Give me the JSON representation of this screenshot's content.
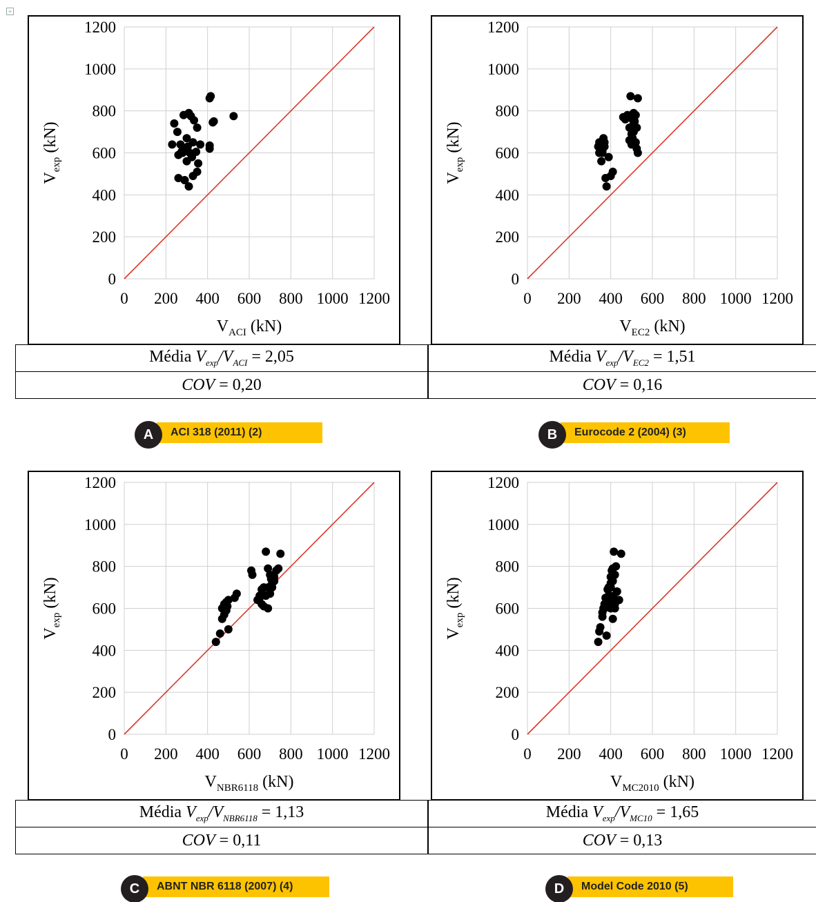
{
  "colors": {
    "reference_line": "#d9372a",
    "points": "#000000",
    "badge_circle": "#231f20",
    "badge_bar": "#fdc300"
  },
  "icon": "expand-icon",
  "chart_data": [
    {
      "type": "scatter",
      "xlabel_main": "V",
      "xlabel_sub": "ACI",
      "xlabel_unit": " (kN)",
      "ylabel_main": "V",
      "ylabel_sub": "exp",
      "ylabel_unit": " (kN)",
      "xlim": [
        0,
        1200
      ],
      "ylim": [
        0,
        1200
      ],
      "grid": true,
      "xticks": [
        "0",
        "200",
        "400",
        "600",
        "800",
        "1000",
        "1200"
      ],
      "yticks": [
        "0",
        "200",
        "400",
        "600",
        "800",
        "1000",
        "1200"
      ],
      "reference_line": [
        [
          0,
          0
        ],
        [
          1200,
          1200
        ]
      ],
      "x": [
        410,
        415,
        425,
        430,
        525,
        285,
        310,
        320,
        240,
        255,
        335,
        270,
        300,
        350,
        305,
        330,
        290,
        260,
        230,
        275,
        315,
        345,
        365,
        280,
        300,
        290,
        330,
        350,
        355,
        260,
        290,
        310,
        325,
        410,
        410
      ],
      "y": [
        860,
        870,
        745,
        750,
        775,
        780,
        790,
        775,
        740,
        700,
        755,
        640,
        670,
        720,
        630,
        650,
        620,
        590,
        640,
        605,
        600,
        605,
        640,
        600,
        560,
        470,
        490,
        510,
        550,
        480,
        470,
        440,
        580,
        620,
        635
      ],
      "stats": {
        "mean_prefix": "Média ",
        "mean_num": "V",
        "mean_num_sub": "exp",
        "mean_den": "V",
        "mean_den_sub": "ACI",
        "mean_value": " = 2,05",
        "cov_label": "COV",
        "cov_value": " = 0,20"
      },
      "badge_letter": "A",
      "badge_text": "ACI 318 (2011) (2)"
    },
    {
      "type": "scatter",
      "xlabel_main": "V",
      "xlabel_sub": "EC2",
      "xlabel_unit": " (kN)",
      "ylabel_main": "V",
      "ylabel_sub": "exp",
      "ylabel_unit": " (kN)",
      "xlim": [
        0,
        1200
      ],
      "ylim": [
        0,
        1200
      ],
      "grid": true,
      "xticks": [
        "0",
        "200",
        "400",
        "600",
        "800",
        "1000",
        "1200"
      ],
      "yticks": [
        "0",
        "200",
        "400",
        "600",
        "800",
        "1000",
        "1200"
      ],
      "reference_line": [
        [
          0,
          0
        ],
        [
          1200,
          1200
        ]
      ],
      "x": [
        340,
        345,
        350,
        355,
        360,
        360,
        365,
        370,
        375,
        380,
        390,
        400,
        410,
        345,
        360,
        370,
        460,
        470,
        480,
        495,
        500,
        505,
        510,
        515,
        520,
        525,
        530,
        490,
        500,
        510,
        520,
        525,
        530,
        500,
        490,
        505,
        510
      ],
      "y": [
        630,
        600,
        640,
        560,
        610,
        620,
        670,
        650,
        480,
        440,
        580,
        490,
        510,
        650,
        600,
        630,
        770,
        760,
        780,
        870,
        780,
        760,
        790,
        750,
        780,
        720,
        860,
        720,
        690,
        700,
        650,
        620,
        600,
        640,
        660,
        670,
        740
      ],
      "stats": {
        "mean_prefix": "Média ",
        "mean_num": "V",
        "mean_num_sub": "exp",
        "mean_den": "V",
        "mean_den_sub": "EC2",
        "mean_value": " = 1,51",
        "cov_label": "COV",
        "cov_value": " = 0,16"
      },
      "badge_letter": "B",
      "badge_text": "Eurocode 2 (2004) (3)"
    },
    {
      "type": "scatter",
      "xlabel_main": "V",
      "xlabel_sub": "NBR6118",
      "xlabel_unit": " (kN)",
      "ylabel_main": "V",
      "ylabel_sub": "exp",
      "ylabel_unit": " (kN)",
      "xlim": [
        0,
        1200
      ],
      "ylim": [
        0,
        1200
      ],
      "grid": true,
      "xticks": [
        "0",
        "200",
        "400",
        "600",
        "800",
        "1000",
        "1200"
      ],
      "yticks": [
        "0",
        "200",
        "400",
        "600",
        "800",
        "1000",
        "1200"
      ],
      "reference_line": [
        [
          0,
          0
        ],
        [
          1200,
          1200
        ]
      ],
      "x": [
        440,
        460,
        470,
        480,
        490,
        495,
        500,
        470,
        480,
        490,
        500,
        530,
        540,
        610,
        615,
        640,
        650,
        660,
        670,
        680,
        690,
        700,
        710,
        720,
        740,
        750,
        680,
        690,
        700,
        705,
        710,
        720,
        730,
        650,
        660,
        670,
        690
      ],
      "y": [
        440,
        480,
        550,
        570,
        590,
        610,
        640,
        600,
        620,
        630,
        500,
        650,
        670,
        780,
        760,
        640,
        650,
        620,
        610,
        660,
        700,
        670,
        720,
        750,
        790,
        860,
        870,
        790,
        760,
        740,
        700,
        730,
        780,
        660,
        690,
        700,
        600
      ],
      "stats": {
        "mean_prefix": "Média ",
        "mean_num": "V",
        "mean_num_sub": "exp",
        "mean_den": "V",
        "mean_den_sub": "NBR6118",
        "mean_value": " = 1,13",
        "cov_label": "COV",
        "cov_value": " = 0,11"
      },
      "badge_letter": "C",
      "badge_text": "ABNT NBR 6118 (2007) (4)"
    },
    {
      "type": "scatter",
      "xlabel_main": "V",
      "xlabel_sub": "MC2010",
      "xlabel_unit": " (kN)",
      "ylabel_main": "V",
      "ylabel_sub": "exp",
      "ylabel_unit": " (kN)",
      "xlim": [
        0,
        1200
      ],
      "ylim": [
        0,
        1200
      ],
      "grid": true,
      "xticks": [
        "0",
        "200",
        "400",
        "600",
        "800",
        "1000",
        "1200"
      ],
      "yticks": [
        "0",
        "200",
        "400",
        "600",
        "800",
        "1000",
        "1200"
      ],
      "reference_line": [
        [
          0,
          0
        ],
        [
          1200,
          1200
        ]
      ],
      "x": [
        340,
        345,
        350,
        360,
        365,
        370,
        375,
        380,
        385,
        390,
        395,
        400,
        405,
        410,
        415,
        420,
        425,
        430,
        440,
        450,
        400,
        410,
        420,
        380,
        390,
        400,
        360,
        370,
        380,
        400,
        410,
        420,
        430,
        415,
        400
      ],
      "y": [
        440,
        490,
        510,
        580,
        600,
        620,
        650,
        470,
        690,
        700,
        640,
        660,
        780,
        790,
        870,
        760,
        800,
        680,
        640,
        860,
        750,
        730,
        600,
        620,
        660,
        700,
        560,
        600,
        640,
        600,
        550,
        620,
        680,
        650,
        720
      ],
      "stats": {
        "mean_prefix": "Média ",
        "mean_num": "V",
        "mean_num_sub": "exp",
        "mean_den": "V",
        "mean_den_sub": "MC10",
        "mean_value": " = 1,65",
        "cov_label": "COV",
        "cov_value": " = 0,13"
      },
      "badge_letter": "D",
      "badge_text": "Model Code 2010 (5)"
    }
  ]
}
